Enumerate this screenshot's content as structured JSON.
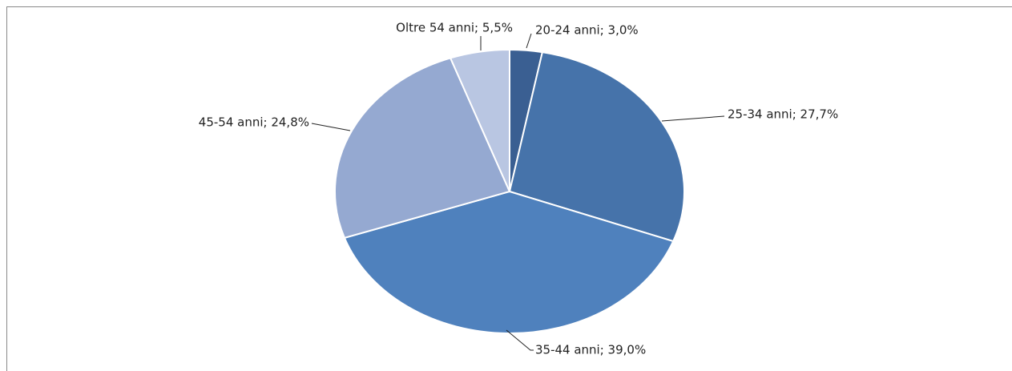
{
  "chart_data": {
    "type": "pie",
    "labels": [
      "20-24 anni; 3,0%",
      "25-34 anni; 27,7%",
      "35-44 anni; 39,0%",
      "45-54 anni; 24,8%",
      "Oltre 54 anni; 5,5%"
    ],
    "values": [
      3.0,
      27.7,
      39.0,
      24.8,
      5.5
    ],
    "colors": [
      "#3a5f92",
      "#4673aa",
      "#4f81bd",
      "#95a9d1",
      "#b9c6e2"
    ]
  }
}
